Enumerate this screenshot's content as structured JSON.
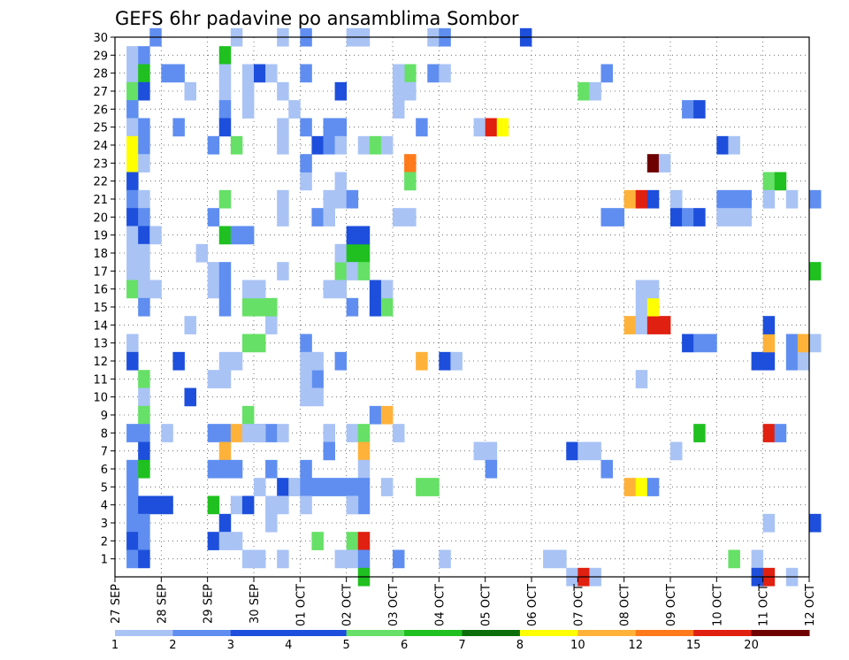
{
  "chart_data": {
    "type": "heatmap",
    "title": "GEFS 6hr padavine po ansamblima Sombor",
    "xlabel": "",
    "ylabel": "",
    "x_ticks": [
      "27 SEP",
      "28 SEP",
      "29 SEP",
      "30 SEP",
      "01 OCT",
      "02 OCT",
      "03 OCT",
      "04 OCT",
      "05 OCT",
      "06 OCT",
      "07 OCT",
      "08 OCT",
      "09 OCT",
      "10 OCT",
      "11 OCT",
      "12 OCT"
    ],
    "x_unit": "6h steps from 27 SEP 00Z",
    "xlim": [
      0,
      60
    ],
    "y_ticks": [
      1,
      2,
      3,
      4,
      5,
      6,
      7,
      8,
      9,
      10,
      11,
      12,
      13,
      14,
      15,
      16,
      17,
      18,
      19,
      20,
      21,
      22,
      23,
      24,
      25,
      26,
      27,
      28,
      29,
      30
    ],
    "ylim": [
      0,
      30
    ],
    "grid": true,
    "legend": {
      "placement": "bottom",
      "labels": [
        "1",
        "2",
        "3",
        "4",
        "5",
        "6",
        "7",
        "8",
        "10",
        "12",
        "15",
        "20"
      ],
      "colors": [
        "#a9c3f5",
        "#5f8ef0",
        "#1d4fdc",
        "#1d4fdc",
        "#66e066",
        "#1fc01f",
        "#0b6e0b",
        "#ffff00",
        "#ffb23a",
        "#ff7a1a",
        "#e02010",
        "#6e0000"
      ]
    },
    "cells": [
      [
        1,
        29,
        1
      ],
      [
        2,
        29,
        2
      ],
      [
        1,
        28,
        1
      ],
      [
        2,
        28,
        6
      ],
      [
        4,
        28,
        2
      ],
      [
        1,
        27,
        5
      ],
      [
        2,
        27,
        3
      ],
      [
        1,
        26,
        2
      ],
      [
        1,
        25,
        1
      ],
      [
        2,
        25,
        2
      ],
      [
        1,
        24,
        8
      ],
      [
        2,
        24,
        2
      ],
      [
        1,
        23,
        8
      ],
      [
        2,
        23,
        1
      ],
      [
        1,
        22,
        3
      ],
      [
        1,
        21,
        2
      ],
      [
        2,
        21,
        1
      ],
      [
        1,
        20,
        3
      ],
      [
        2,
        20,
        2
      ],
      [
        1,
        19,
        1
      ],
      [
        2,
        19,
        3
      ],
      [
        3,
        19,
        1
      ],
      [
        1,
        18,
        1
      ],
      [
        2,
        18,
        1
      ],
      [
        1,
        17,
        1
      ],
      [
        2,
        17,
        1
      ],
      [
        1,
        16,
        5
      ],
      [
        2,
        16,
        1
      ],
      [
        3,
        16,
        1
      ],
      [
        2,
        15,
        2
      ],
      [
        1,
        13,
        1
      ],
      [
        1,
        12,
        3
      ],
      [
        2,
        11,
        5
      ],
      [
        2,
        10,
        1
      ],
      [
        2,
        9,
        5
      ],
      [
        1,
        8,
        2
      ],
      [
        2,
        8,
        2
      ],
      [
        2,
        7,
        3
      ],
      [
        1,
        6,
        2
      ],
      [
        2,
        6,
        6
      ],
      [
        1,
        5,
        2
      ],
      [
        1,
        4,
        2
      ],
      [
        2,
        4,
        3
      ],
      [
        3,
        4,
        3
      ],
      [
        4,
        4,
        3
      ],
      [
        1,
        3,
        2
      ],
      [
        2,
        3,
        2
      ],
      [
        1,
        2,
        3
      ],
      [
        2,
        2,
        2
      ],
      [
        1,
        1,
        2
      ],
      [
        2,
        1,
        3
      ],
      [
        3,
        30,
        2
      ],
      [
        5,
        28,
        2
      ],
      [
        6,
        27,
        1
      ],
      [
        5,
        25,
        2
      ],
      [
        7,
        18,
        1
      ],
      [
        6,
        14,
        1
      ],
      [
        5,
        12,
        3
      ],
      [
        6,
        10,
        3
      ],
      [
        4,
        8,
        1
      ],
      [
        9,
        29,
        6
      ],
      [
        9,
        28,
        1
      ],
      [
        9,
        27,
        1
      ],
      [
        9,
        26,
        2
      ],
      [
        8,
        24,
        2
      ],
      [
        10,
        24,
        5
      ],
      [
        9,
        25,
        3
      ],
      [
        9,
        21,
        5
      ],
      [
        8,
        20,
        2
      ],
      [
        9,
        19,
        6
      ],
      [
        8,
        16,
        1
      ],
      [
        9,
        16,
        2
      ],
      [
        8,
        17,
        1
      ],
      [
        9,
        17,
        2
      ],
      [
        9,
        15,
        2
      ],
      [
        9,
        12,
        1
      ],
      [
        8,
        11,
        1
      ],
      [
        9,
        11,
        1
      ],
      [
        8,
        8,
        2
      ],
      [
        9,
        8,
        2
      ],
      [
        10,
        8,
        10
      ],
      [
        9,
        7,
        10
      ],
      [
        8,
        6,
        2
      ],
      [
        9,
        6,
        2
      ],
      [
        10,
        6,
        2
      ],
      [
        8,
        4,
        6
      ],
      [
        9,
        3,
        3
      ],
      [
        8,
        2,
        3
      ],
      [
        9,
        2,
        1
      ],
      [
        10,
        2,
        1
      ],
      [
        10,
        4,
        1
      ],
      [
        11,
        4,
        3
      ],
      [
        10,
        12,
        1
      ],
      [
        11,
        9,
        5
      ],
      [
        10,
        30,
        1
      ],
      [
        11,
        28,
        1
      ],
      [
        11,
        27,
        1
      ],
      [
        11,
        26,
        1
      ],
      [
        11,
        19,
        2
      ],
      [
        10,
        19,
        2
      ],
      [
        11,
        13,
        5
      ],
      [
        12,
        13,
        5
      ],
      [
        13,
        14,
        1
      ],
      [
        11,
        15,
        5
      ],
      [
        12,
        15,
        5
      ],
      [
        13,
        15,
        5
      ],
      [
        11,
        16,
        1
      ],
      [
        12,
        16,
        1
      ],
      [
        12,
        5,
        1
      ],
      [
        11,
        8,
        1
      ],
      [
        12,
        8,
        2
      ],
      [
        13,
        8,
        2
      ],
      [
        11,
        1,
        1
      ],
      [
        12,
        8,
        1
      ],
      [
        14,
        30,
        1
      ],
      [
        12,
        28,
        3
      ],
      [
        13,
        28,
        1
      ],
      [
        14,
        27,
        1
      ],
      [
        14,
        25,
        1
      ],
      [
        14,
        24,
        1
      ],
      [
        14,
        21,
        1
      ],
      [
        14,
        20,
        1
      ],
      [
        14,
        17,
        1
      ],
      [
        14,
        8,
        1
      ],
      [
        13,
        6,
        2
      ],
      [
        14,
        5,
        3
      ],
      [
        13,
        4,
        1
      ],
      [
        14,
        4,
        1
      ],
      [
        13,
        3,
        1
      ],
      [
        12,
        1,
        1
      ],
      [
        14,
        1,
        1
      ],
      [
        16,
        30,
        2
      ],
      [
        16,
        28,
        2
      ],
      [
        15,
        26,
        1
      ],
      [
        16,
        25,
        2
      ],
      [
        16,
        22,
        1
      ],
      [
        17,
        24,
        3
      ],
      [
        16,
        23,
        2
      ],
      [
        17,
        20,
        2
      ],
      [
        16,
        13,
        2
      ],
      [
        16,
        12,
        1
      ],
      [
        17,
        11,
        2
      ],
      [
        16,
        11,
        1
      ],
      [
        16,
        10,
        1
      ],
      [
        17,
        10,
        1
      ],
      [
        17,
        12,
        1
      ],
      [
        16,
        6,
        2
      ],
      [
        15,
        5,
        1
      ],
      [
        16,
        5,
        2
      ],
      [
        17,
        5,
        2
      ],
      [
        16,
        4,
        1
      ],
      [
        18,
        5,
        2
      ],
      [
        18,
        8,
        1
      ],
      [
        18,
        7,
        2
      ],
      [
        17,
        2,
        5
      ],
      [
        19,
        27,
        3
      ],
      [
        19,
        25,
        2
      ],
      [
        18,
        25,
        2
      ],
      [
        18,
        24,
        2
      ],
      [
        19,
        24,
        1
      ],
      [
        18,
        21,
        1
      ],
      [
        18,
        20,
        1
      ],
      [
        19,
        22,
        1
      ],
      [
        19,
        17,
        5
      ],
      [
        19,
        16,
        1
      ],
      [
        18,
        16,
        1
      ],
      [
        19,
        12,
        2
      ],
      [
        20,
        30,
        1
      ],
      [
        21,
        30,
        1
      ],
      [
        19,
        21,
        1
      ],
      [
        20,
        21,
        2
      ],
      [
        21,
        24,
        1
      ],
      [
        19,
        18,
        1
      ],
      [
        20,
        18,
        6
      ],
      [
        21,
        18,
        6
      ],
      [
        20,
        17,
        1
      ],
      [
        21,
        17,
        5
      ],
      [
        21,
        19,
        3
      ],
      [
        20,
        19,
        3
      ],
      [
        20,
        15,
        2
      ],
      [
        20,
        8,
        1
      ],
      [
        21,
        8,
        5
      ],
      [
        21,
        7,
        10
      ],
      [
        21,
        6,
        1
      ],
      [
        20,
        5,
        2
      ],
      [
        21,
        5,
        2
      ],
      [
        19,
        5,
        2
      ],
      [
        20,
        4,
        1
      ],
      [
        21,
        4,
        2
      ],
      [
        20,
        2,
        5
      ],
      [
        21,
        2,
        15
      ],
      [
        19,
        1,
        1
      ],
      [
        20,
        1,
        1
      ],
      [
        21,
        1,
        2
      ],
      [
        21,
        0,
        6
      ],
      [
        20,
        4,
        1
      ],
      [
        22,
        24,
        5
      ],
      [
        23,
        24,
        1
      ],
      [
        22,
        16,
        3
      ],
      [
        22,
        15,
        3
      ],
      [
        23,
        15,
        5
      ],
      [
        23,
        16,
        1
      ],
      [
        22,
        9,
        2
      ],
      [
        23,
        9,
        10
      ],
      [
        24,
        8,
        1
      ],
      [
        23,
        5,
        1
      ],
      [
        24,
        1,
        2
      ],
      [
        24,
        26,
        1
      ],
      [
        24,
        27,
        1
      ],
      [
        25,
        28,
        5
      ],
      [
        25,
        27,
        1
      ],
      [
        24,
        28,
        1
      ],
      [
        25,
        23,
        12
      ],
      [
        25,
        22,
        5
      ],
      [
        24,
        20,
        1
      ],
      [
        25,
        20,
        1
      ],
      [
        26,
        25,
        2
      ],
      [
        26,
        12,
        10
      ],
      [
        26,
        5,
        5
      ],
      [
        27,
        5,
        5
      ],
      [
        27,
        30,
        1
      ],
      [
        28,
        30,
        2
      ],
      [
        27,
        28,
        2
      ],
      [
        28,
        28,
        1
      ],
      [
        28,
        12,
        3
      ],
      [
        29,
        12,
        1
      ],
      [
        28,
        1,
        1
      ],
      [
        31,
        25,
        1
      ],
      [
        32,
        25,
        15
      ],
      [
        33,
        25,
        8
      ],
      [
        31,
        7,
        1
      ],
      [
        32,
        7,
        1
      ],
      [
        32,
        6,
        2
      ],
      [
        35,
        30,
        3
      ],
      [
        37,
        1,
        1
      ],
      [
        38,
        1,
        1
      ],
      [
        39,
        0,
        1
      ],
      [
        40,
        0,
        15
      ],
      [
        41,
        0,
        1
      ],
      [
        39,
        7,
        3
      ],
      [
        40,
        7,
        1
      ],
      [
        41,
        7,
        1
      ],
      [
        40,
        27,
        5
      ],
      [
        41,
        27,
        1
      ],
      [
        42,
        28,
        2
      ],
      [
        42,
        6,
        2
      ],
      [
        42,
        20,
        2
      ],
      [
        43,
        20,
        2
      ],
      [
        44,
        5,
        10
      ],
      [
        45,
        5,
        8
      ],
      [
        46,
        5,
        2
      ],
      [
        44,
        21,
        10
      ],
      [
        45,
        21,
        15
      ],
      [
        46,
        21,
        3
      ],
      [
        44,
        14,
        10
      ],
      [
        45,
        14,
        1
      ],
      [
        46,
        14,
        15
      ],
      [
        47,
        14,
        15
      ],
      [
        45,
        15,
        1
      ],
      [
        46,
        15,
        8
      ],
      [
        45,
        16,
        1
      ],
      [
        46,
        16,
        1
      ],
      [
        45,
        11,
        1
      ],
      [
        46,
        23,
        20
      ],
      [
        47,
        23,
        1
      ],
      [
        48,
        21,
        1
      ],
      [
        48,
        20,
        3
      ],
      [
        48,
        7,
        1
      ],
      [
        49,
        26,
        2
      ],
      [
        50,
        26,
        3
      ],
      [
        49,
        20,
        2
      ],
      [
        50,
        20,
        3
      ],
      [
        49,
        13,
        3
      ],
      [
        50,
        13,
        2
      ],
      [
        51,
        13,
        2
      ],
      [
        50,
        8,
        6
      ],
      [
        52,
        24,
        3
      ],
      [
        53,
        24,
        1
      ],
      [
        52,
        21,
        2
      ],
      [
        53,
        21,
        2
      ],
      [
        54,
        21,
        2
      ],
      [
        52,
        20,
        1
      ],
      [
        53,
        20,
        1
      ],
      [
        54,
        20,
        1
      ],
      [
        53,
        1,
        5
      ],
      [
        55,
        1,
        1
      ],
      [
        56,
        22,
        5
      ],
      [
        57,
        22,
        6
      ],
      [
        56,
        21,
        1
      ],
      [
        58,
        21,
        1
      ],
      [
        60,
        21,
        2
      ],
      [
        55,
        12,
        3
      ],
      [
        56,
        12,
        3
      ],
      [
        58,
        12,
        2
      ],
      [
        59,
        12,
        1
      ],
      [
        56,
        13,
        10
      ],
      [
        58,
        13,
        2
      ],
      [
        59,
        13,
        10
      ],
      [
        60,
        13,
        1
      ],
      [
        56,
        14,
        3
      ],
      [
        56,
        8,
        15
      ],
      [
        57,
        8,
        2
      ],
      [
        56,
        3,
        1
      ],
      [
        55,
        0,
        3
      ],
      [
        56,
        0,
        15
      ],
      [
        58,
        0,
        1
      ],
      [
        60,
        3,
        3
      ],
      [
        60,
        17,
        6
      ]
    ]
  }
}
